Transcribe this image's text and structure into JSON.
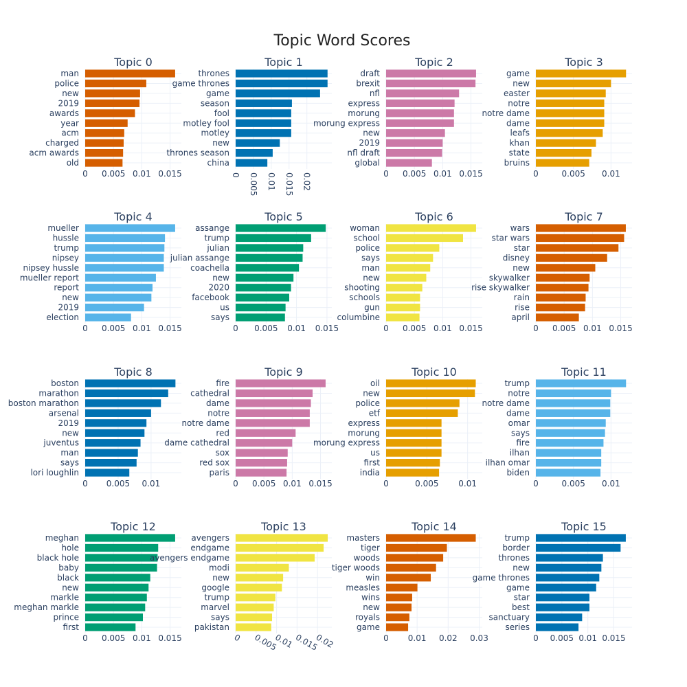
{
  "chart_data": {
    "type": "bar",
    "orientation": "horizontal",
    "title": "Topic Word Scores",
    "panels": [
      {
        "title": "Topic 0",
        "color": "#D55E00",
        "xlim": [
          0,
          0.017
        ],
        "ticks": [
          0,
          0.005,
          0.01,
          0.015
        ],
        "tick_labels": [
          "0",
          "0.005",
          "0.01",
          "0.015"
        ],
        "words": [
          "man",
          "police",
          "new",
          "2019",
          "awards",
          "year",
          "acm",
          "charged",
          "acm awards",
          "old"
        ],
        "values": [
          0.0159,
          0.0108,
          0.0097,
          0.0096,
          0.0088,
          0.0075,
          0.0069,
          0.0068,
          0.0067,
          0.0066
        ]
      },
      {
        "title": "Topic 1",
        "color": "#0072B2",
        "xlim": [
          0,
          0.027
        ],
        "ticks": [
          0,
          0.005,
          0.01,
          0.015,
          0.02
        ],
        "tick_labels": [
          "0",
          "0.005",
          "0.01",
          "0.015",
          "0.02"
        ],
        "words": [
          "thrones",
          "game thrones",
          "game",
          "season",
          "fool",
          "motley fool",
          "motley",
          "new",
          "thrones season",
          "china"
        ],
        "values": [
          0.0258,
          0.0258,
          0.0237,
          0.0158,
          0.0156,
          0.0156,
          0.0156,
          0.0124,
          0.0104,
          0.0089
        ]
      },
      {
        "title": "Topic 2",
        "color": "#CC79A7",
        "xlim": [
          0,
          0.017
        ],
        "ticks": [
          0,
          0.005,
          0.01,
          0.015
        ],
        "tick_labels": [
          "0",
          "0.005",
          "0.01",
          "0.015"
        ],
        "words": [
          "draft",
          "brexit",
          "nfl",
          "express",
          "morung",
          "morung express",
          "new",
          "2019",
          "nfl draft",
          "global"
        ],
        "values": [
          0.0159,
          0.0158,
          0.0129,
          0.0121,
          0.012,
          0.012,
          0.0104,
          0.01,
          0.0099,
          0.0081
        ]
      },
      {
        "title": "Topic 3",
        "color": "#E69F00",
        "xlim": [
          0,
          0.0128
        ],
        "ticks": [
          0,
          0.005,
          0.01
        ],
        "tick_labels": [
          "0",
          "0.005",
          "0.01"
        ],
        "words": [
          "game",
          "new",
          "easter",
          "notre",
          "notre dame",
          "dame",
          "leafs",
          "khan",
          "state",
          "bruins"
        ],
        "values": [
          0.012,
          0.01,
          0.0093,
          0.0091,
          0.0091,
          0.0091,
          0.0089,
          0.008,
          0.0074,
          0.0071
        ]
      },
      {
        "title": "Topic 4",
        "color": "#56B4E9",
        "xlim": [
          0,
          0.017
        ],
        "ticks": [
          0,
          0.005,
          0.01,
          0.015
        ],
        "tick_labels": [
          "0",
          "0.005",
          "0.01",
          "0.015"
        ],
        "words": [
          "mueller",
          "hussle",
          "trump",
          "nipsey",
          "nipsey hussle",
          "mueller report",
          "report",
          "new",
          "2019",
          "election"
        ],
        "values": [
          0.0159,
          0.0141,
          0.014,
          0.0139,
          0.0139,
          0.0125,
          0.0119,
          0.0117,
          0.0104,
          0.0081
        ]
      },
      {
        "title": "Topic 5",
        "color": "#009E73",
        "xlim": [
          0,
          0.0158
        ],
        "ticks": [
          0,
          0.005,
          0.01,
          0.015
        ],
        "tick_labels": [
          "0",
          "0.005",
          "0.01",
          "0.015"
        ],
        "words": [
          "assange",
          "trump",
          "julian",
          "julian assange",
          "coachella",
          "new",
          "2020",
          "facebook",
          "us",
          "says"
        ],
        "values": [
          0.0148,
          0.0124,
          0.0111,
          0.011,
          0.0104,
          0.0095,
          0.0091,
          0.0088,
          0.0082,
          0.0081
        ]
      },
      {
        "title": "Topic 6",
        "color": "#F0E442",
        "xlim": [
          0,
          0.017
        ],
        "ticks": [
          0,
          0.005,
          0.01,
          0.015
        ],
        "tick_labels": [
          "0",
          "0.005",
          "0.01",
          "0.015"
        ],
        "words": [
          "woman",
          "school",
          "police",
          "says",
          "man",
          "new",
          "shooting",
          "schools",
          "gun",
          "columbine"
        ],
        "values": [
          0.0159,
          0.0136,
          0.0094,
          0.0083,
          0.0078,
          0.0071,
          0.0064,
          0.006,
          0.006,
          0.0059
        ]
      },
      {
        "title": "Topic 7",
        "color": "#D55E00",
        "xlim": [
          0,
          0.017
        ],
        "ticks": [
          0,
          0.005,
          0.01,
          0.015
        ],
        "tick_labels": [
          "0",
          "0.005",
          "0.01",
          "0.015"
        ],
        "words": [
          "wars",
          "star wars",
          "star",
          "disney",
          "new",
          "skywalker",
          "rise skywalker",
          "rain",
          "rise",
          "april"
        ],
        "values": [
          0.0159,
          0.0156,
          0.0146,
          0.0126,
          0.0105,
          0.0095,
          0.0093,
          0.0088,
          0.0087,
          0.0076
        ]
      },
      {
        "title": "Topic 8",
        "color": "#0072B2",
        "xlim": [
          0,
          0.0146
        ],
        "ticks": [
          0,
          0.005,
          0.01
        ],
        "tick_labels": [
          "0",
          "0.005",
          "0.01"
        ],
        "words": [
          "boston",
          "marathon",
          "boston marathon",
          "arsenal",
          "2019",
          "new",
          "juventus",
          "man",
          "says",
          "lori loughlin"
        ],
        "values": [
          0.0137,
          0.0126,
          0.0115,
          0.01,
          0.0093,
          0.009,
          0.0084,
          0.008,
          0.0078,
          0.0067
        ]
      },
      {
        "title": "Topic 9",
        "color": "#CC79A7",
        "xlim": [
          0,
          0.017
        ],
        "ticks": [
          0,
          0.005,
          0.01,
          0.015
        ],
        "tick_labels": [
          "0",
          "0.005",
          "0.01",
          "0.015"
        ],
        "words": [
          "fire",
          "cathedral",
          "dame",
          "notre",
          "notre dame",
          "red",
          "dame cathedral",
          "sox",
          "red sox",
          "paris"
        ],
        "values": [
          0.0159,
          0.0136,
          0.0133,
          0.0131,
          0.0131,
          0.0106,
          0.01,
          0.0092,
          0.0091,
          0.009
        ]
      },
      {
        "title": "Topic 10",
        "color": "#E69F00",
        "xlim": [
          0,
          0.0118
        ],
        "ticks": [
          0,
          0.005,
          0.01
        ],
        "tick_labels": [
          "0",
          "0.005",
          "0.01"
        ],
        "words": [
          "oil",
          "new",
          "police",
          "etf",
          "express",
          "morung",
          "morung express",
          "us",
          "first",
          "india"
        ],
        "values": [
          0.011,
          0.0109,
          0.009,
          0.0088,
          0.0068,
          0.0068,
          0.0068,
          0.0068,
          0.0066,
          0.0065
        ]
      },
      {
        "title": "Topic 11",
        "color": "#56B4E9",
        "xlim": [
          0,
          0.0128
        ],
        "ticks": [
          0,
          0.005,
          0.01
        ],
        "tick_labels": [
          "0",
          "0.005",
          "0.01"
        ],
        "words": [
          "trump",
          "notre",
          "notre dame",
          "dame",
          "omar",
          "says",
          "fire",
          "ilhan",
          "ilhan omar",
          "biden"
        ],
        "values": [
          0.012,
          0.01,
          0.0099,
          0.0099,
          0.0093,
          0.0092,
          0.009,
          0.0087,
          0.0087,
          0.0086
        ]
      },
      {
        "title": "Topic 12",
        "color": "#009E73",
        "xlim": [
          0,
          0.017
        ],
        "ticks": [
          0,
          0.005,
          0.01,
          0.015
        ],
        "tick_labels": [
          "0",
          "0.005",
          "0.01",
          "0.015"
        ],
        "words": [
          "meghan",
          "hole",
          "black hole",
          "baby",
          "black",
          "new",
          "markle",
          "meghan markle",
          "prince",
          "first"
        ],
        "values": [
          0.0159,
          0.0129,
          0.0128,
          0.0127,
          0.0115,
          0.0112,
          0.0109,
          0.0106,
          0.0102,
          0.0089
        ]
      },
      {
        "title": "Topic 13",
        "color": "#F0E442",
        "xlim": [
          0,
          0.0235
        ],
        "ticks": [
          0,
          0.005,
          0.01,
          0.015,
          0.02
        ],
        "tick_labels": [
          "0",
          "0.005",
          "0.01",
          "0.015",
          "0.02"
        ],
        "words": [
          "avengers",
          "endgame",
          "avengers endgame",
          "modi",
          "new",
          "google",
          "trump",
          "marvel",
          "says",
          "pakistan"
        ],
        "values": [
          0.0225,
          0.0215,
          0.0193,
          0.013,
          0.0116,
          0.0113,
          0.0097,
          0.0093,
          0.0089,
          0.0087
        ]
      },
      {
        "title": "Topic 14",
        "color": "#D55E00",
        "xlim": [
          0,
          0.031
        ],
        "ticks": [
          0,
          0.01,
          0.02,
          0.03
        ],
        "tick_labels": [
          "0",
          "0.01",
          "0.02",
          "0.03"
        ],
        "words": [
          "masters",
          "tiger",
          "woods",
          "tiger woods",
          "win",
          "measles",
          "wins",
          "new",
          "royals",
          "game"
        ],
        "values": [
          0.0289,
          0.0196,
          0.0184,
          0.0161,
          0.0144,
          0.0101,
          0.0084,
          0.0082,
          0.0075,
          0.0071
        ]
      },
      {
        "title": "Topic 15",
        "color": "#0072B2",
        "xlim": [
          0,
          0.0185
        ],
        "ticks": [
          0,
          0.005,
          0.01,
          0.015
        ],
        "tick_labels": [
          "0",
          "0.005",
          "0.01",
          "0.015"
        ],
        "words": [
          "trump",
          "border",
          "thrones",
          "new",
          "game thrones",
          "game",
          "star",
          "best",
          "sanctuary",
          "series"
        ],
        "values": [
          0.0173,
          0.0163,
          0.0129,
          0.0126,
          0.0122,
          0.0116,
          0.0103,
          0.0103,
          0.0089,
          0.0082
        ]
      }
    ]
  }
}
